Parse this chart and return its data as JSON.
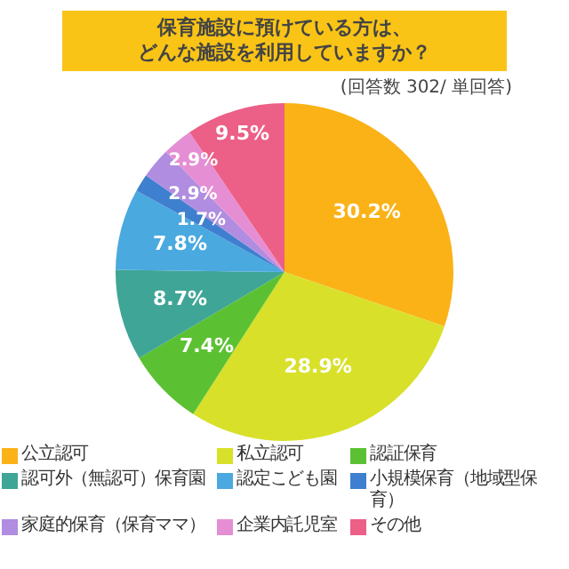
{
  "chart_data": {
    "type": "pie",
    "title": "保育施設に預けている方は、どんな施設を利用していますか？",
    "subtitle": "(回答数 302/ 単回答)",
    "categories": [
      "公立認可",
      "私立認可",
      "認証保育",
      "認可外（無認可）保育園",
      "認定こども園",
      "小規模保育（地域型保育）",
      "家庭的保育（保育ママ）",
      "企業内託児室",
      "その他"
    ],
    "values": [
      30.2,
      28.9,
      7.4,
      8.7,
      7.8,
      1.7,
      2.9,
      2.9,
      9.5
    ],
    "value_labels": [
      "30.2%",
      "28.9%",
      "7.4%",
      "8.7%",
      "7.8%",
      "1.7%",
      "2.9%",
      "2.9%",
      "9.5%"
    ],
    "colors": [
      "#fbb217",
      "#d8e02a",
      "#5cc132",
      "#3fa596",
      "#4aa9df",
      "#3f7fcf",
      "#b08de0",
      "#e58ed4",
      "#ec5f86"
    ],
    "legend": "bottom"
  }
}
